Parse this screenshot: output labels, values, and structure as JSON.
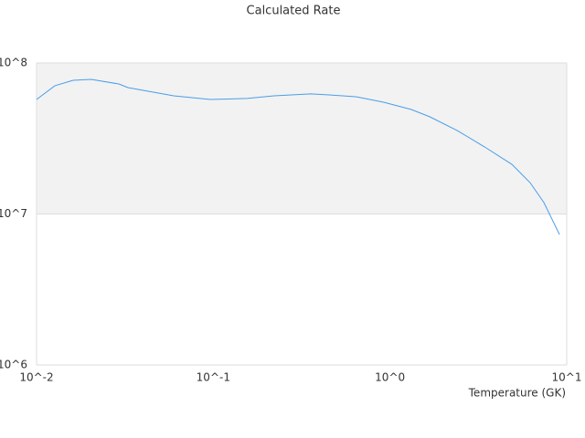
{
  "chart_data": {
    "type": "line",
    "title": "Calculated Rate",
    "x_label": "Temperature (GK)",
    "x": [
      0.01,
      0.0127,
      0.0161,
      0.0204,
      0.0292,
      0.0329,
      0.0597,
      0.0962,
      0.155,
      0.221,
      0.356,
      0.452,
      0.647,
      0.925,
      1.32,
      1.68,
      2.4,
      3.43,
      4.9,
      6.21,
      7.43,
      9.1
    ],
    "values": [
      57300000,
      70700000,
      76800000,
      77800000,
      72600000,
      68700000,
      60600000,
      57300000,
      58200000,
      60600000,
      62400000,
      61500000,
      59700000,
      54900000,
      49200000,
      44000000,
      35700000,
      27800000,
      21300000,
      16100000,
      11900000,
      7310000
    ],
    "color": "#4a9de8",
    "x_log": true,
    "y_log": true,
    "xlim": [
      0.01,
      10
    ],
    "ylim": [
      1000000,
      100000000
    ],
    "xticks": [
      {
        "value": 0.01,
        "label": "10^-2"
      },
      {
        "value": 0.1,
        "label": "10^-1"
      },
      {
        "value": 1,
        "label": "10^0"
      },
      {
        "value": 10,
        "label": "10^1"
      }
    ],
    "yticks": [
      {
        "value": 1000000,
        "label": "10^6"
      },
      {
        "value": 10000000,
        "label": "10^7"
      },
      {
        "value": 100000000,
        "label": "10^8"
      }
    ],
    "grid": true,
    "alternate_bands": true
  }
}
